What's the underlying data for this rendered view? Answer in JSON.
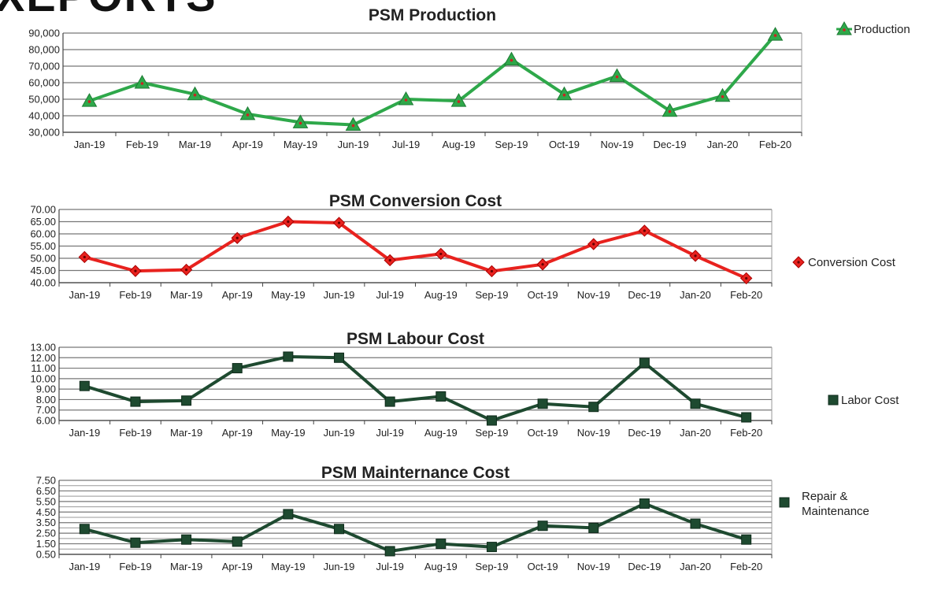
{
  "header": {
    "partial_title": "XEPORTS"
  },
  "chart_data": [
    {
      "type": "line",
      "title": "PSM Production",
      "categories": [
        "Jan-19",
        "Feb-19",
        "Mar-19",
        "Apr-19",
        "May-19",
        "Jun-19",
        "Jul-19",
        "Aug-19",
        "Sep-19",
        "Oct-19",
        "Nov-19",
        "Dec-19",
        "Jan-20",
        "Feb-20"
      ],
      "series": [
        {
          "name": "Production",
          "values": [
            49000,
            60000,
            53000,
            41000,
            36000,
            34500,
            50000,
            49000,
            74000,
            53000,
            64000,
            43000,
            52000,
            89000
          ]
        }
      ],
      "ylim": [
        30000,
        90000
      ],
      "yticks": [
        30000,
        40000,
        50000,
        60000,
        70000,
        80000,
        90000
      ],
      "ytick_labels": [
        "30,000",
        "40,000",
        "50,000",
        "60,000",
        "70,000",
        "80,000",
        "90,000"
      ],
      "marker": "triangle",
      "color": "#2ea84a",
      "marker_center": "#cc2222",
      "legend_position": "top-right",
      "grid": true
    },
    {
      "type": "line",
      "title": "PSM Conversion Cost",
      "categories": [
        "Jan-19",
        "Feb-19",
        "Mar-19",
        "Apr-19",
        "May-19",
        "Jun-19",
        "Jul-19",
        "Aug-19",
        "Sep-19",
        "Oct-19",
        "Nov-19",
        "Dec-19",
        "Jan-20",
        "Feb-20"
      ],
      "series": [
        {
          "name": "Conversion Cost",
          "values": [
            50.5,
            44.8,
            45.3,
            58.3,
            65.0,
            64.5,
            49.2,
            51.8,
            44.7,
            47.5,
            55.8,
            61.3,
            51.0,
            41.8
          ]
        }
      ],
      "ylim": [
        40,
        70
      ],
      "yticks": [
        40,
        45,
        50,
        55,
        60,
        65,
        70
      ],
      "ytick_labels": [
        "40.00",
        "45.00",
        "50.00",
        "55.00",
        "60.00",
        "65.00",
        "70.00"
      ],
      "marker": "diamond",
      "color": "#e8221e",
      "marker_center": "#660000",
      "legend_position": "right",
      "grid": true
    },
    {
      "type": "line",
      "title": "PSM Labour Cost",
      "categories": [
        "Jan-19",
        "Feb-19",
        "Mar-19",
        "Apr-19",
        "May-19",
        "Jun-19",
        "Jul-19",
        "Aug-19",
        "Sep-19",
        "Oct-19",
        "Nov-19",
        "Dec-19",
        "Jan-20",
        "Feb-20"
      ],
      "series": [
        {
          "name": "Labor Cost",
          "values": [
            9.3,
            7.8,
            7.9,
            11.0,
            12.1,
            12.0,
            7.8,
            8.3,
            6.0,
            7.6,
            7.3,
            11.5,
            7.6,
            6.3
          ]
        }
      ],
      "ylim": [
        6,
        13
      ],
      "yticks": [
        6,
        7,
        8,
        9,
        10,
        11,
        12,
        13
      ],
      "ytick_labels": [
        "6.00",
        "7.00",
        "8.00",
        "9.00",
        "10.00",
        "11.00",
        "12.00",
        "13.00"
      ],
      "marker": "square",
      "color": "#1e4a30",
      "marker_center": "#1e4a30",
      "legend_position": "right",
      "grid": true
    },
    {
      "type": "line",
      "title": "PSM Mainternance Cost",
      "categories": [
        "Jan-19",
        "Feb-19",
        "Mar-19",
        "Apr-19",
        "May-19",
        "Jun-19",
        "Jul-19",
        "Aug-19",
        "Sep-19",
        "Oct-19",
        "Nov-19",
        "Dec-19",
        "Jan-20",
        "Feb-20"
      ],
      "series": [
        {
          "name": "Repair & Maintenance",
          "values": [
            2.9,
            1.6,
            1.9,
            1.7,
            4.3,
            2.9,
            0.8,
            1.5,
            1.2,
            3.2,
            3.0,
            5.3,
            3.4,
            1.9
          ]
        }
      ],
      "ylim": [
        0.5,
        7.5
      ],
      "yticks": [
        0.5,
        1.5,
        2.5,
        3.5,
        4.5,
        5.5,
        6.5,
        7.5
      ],
      "ytick_labels": [
        "0.50",
        "1.50",
        "2.50",
        "3.50",
        "4.50",
        "5.50",
        "6.50",
        "7.50"
      ],
      "minor_gridlines": true,
      "marker": "square",
      "color": "#1e4a30",
      "marker_center": "#1e4a30",
      "legend_position": "right",
      "grid": true
    }
  ]
}
